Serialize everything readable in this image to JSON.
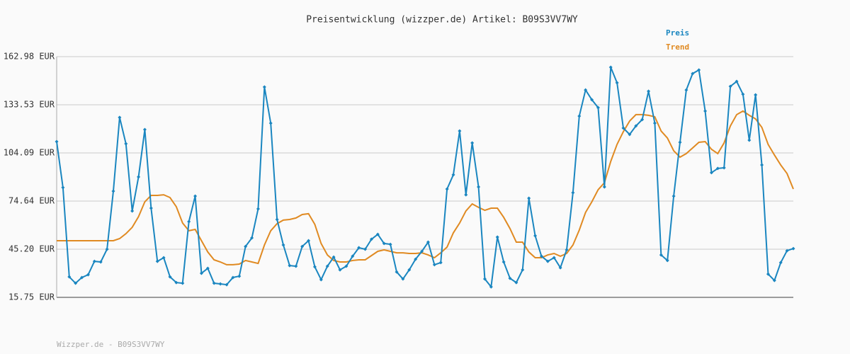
{
  "chart_data": {
    "type": "line",
    "title": "Preisentwicklung (wizzper.de) Artikel: B09S3VV7WY",
    "source": "Wizzper.de - B09S3VV7WY",
    "ylim": [
      15.75,
      162.98
    ],
    "yticks": [
      {
        "value": 15.75,
        "label": "15.75 EUR"
      },
      {
        "value": 45.2,
        "label": "45.20 EUR"
      },
      {
        "value": 74.64,
        "label": "74.64 EUR"
      },
      {
        "value": 104.09,
        "label": "104.09 EUR"
      },
      {
        "value": 133.53,
        "label": "133.53 EUR"
      },
      {
        "value": 162.98,
        "label": "162.98 EUR"
      }
    ],
    "grid": true,
    "series": [
      {
        "name": "Preis",
        "color": "#1a86c0",
        "markers": true,
        "values": [
          111.0,
          82.9,
          28.3,
          24.4,
          27.9,
          29.6,
          37.8,
          37.4,
          45.2,
          80.7,
          125.8,
          109.7,
          68.6,
          89.4,
          118.4,
          70.3,
          37.8,
          40.0,
          28.3,
          24.8,
          24.4,
          62.1,
          77.7,
          30.5,
          33.5,
          24.4,
          24.0,
          23.5,
          27.9,
          28.7,
          46.9,
          52.1,
          69.9,
          144.4,
          122.3,
          63.4,
          47.8,
          35.2,
          34.8,
          46.9,
          50.4,
          34.4,
          26.6,
          34.8,
          40.4,
          32.6,
          34.8,
          40.9,
          46.1,
          45.2,
          51.3,
          54.3,
          48.7,
          48.2,
          31.3,
          27.0,
          32.6,
          39.1,
          43.9,
          49.5,
          35.7,
          37.0,
          82.0,
          90.7,
          117.5,
          78.5,
          110.2,
          83.3,
          27.0,
          22.2,
          52.6,
          37.4,
          27.4,
          24.8,
          32.6,
          76.4,
          53.4,
          40.9,
          37.8,
          40.0,
          33.9,
          44.8,
          79.8,
          126.6,
          142.6,
          136.6,
          131.8,
          83.3,
          156.5,
          147.0,
          119.3,
          115.4,
          120.6,
          124.5,
          141.8,
          122.3,
          41.7,
          38.3,
          77.7,
          110.6,
          142.6,
          152.6,
          154.8,
          129.7,
          92.0,
          94.6,
          95.0,
          144.8,
          147.8,
          140.0,
          111.9,
          139.6,
          96.7,
          30.0,
          26.1,
          37.0,
          44.3,
          45.6
        ]
      },
      {
        "name": "Trend",
        "color": "#e08a22",
        "markers": false,
        "values": [
          50.4,
          50.4,
          50.4,
          50.4,
          50.4,
          50.4,
          50.4,
          50.4,
          50.4,
          50.4,
          51.7,
          54.7,
          58.6,
          65.1,
          74.2,
          78.1,
          78.1,
          78.5,
          76.8,
          71.2,
          61.2,
          56.5,
          57.3,
          50.4,
          43.5,
          38.7,
          37.4,
          35.7,
          35.7,
          36.1,
          38.3,
          37.4,
          36.5,
          47.8,
          56.5,
          60.8,
          63.0,
          63.4,
          64.3,
          66.4,
          66.9,
          60.4,
          48.7,
          41.7,
          38.3,
          37.4,
          37.4,
          38.3,
          38.7,
          38.7,
          41.3,
          43.9,
          44.8,
          43.9,
          43.0,
          43.0,
          42.6,
          42.6,
          43.0,
          41.7,
          40.0,
          43.0,
          46.5,
          55.2,
          61.2,
          68.6,
          72.9,
          70.8,
          69.0,
          70.3,
          70.3,
          64.7,
          57.8,
          49.5,
          49.5,
          43.5,
          40.0,
          40.0,
          41.7,
          42.6,
          40.9,
          42.6,
          47.8,
          56.9,
          67.7,
          74.2,
          81.6,
          85.9,
          98.9,
          109.3,
          117.1,
          123.6,
          127.5,
          127.5,
          127.1,
          126.2,
          117.5,
          113.2,
          105.4,
          101.5,
          103.7,
          107.1,
          110.6,
          111.0,
          106.3,
          103.7,
          110.2,
          120.6,
          127.5,
          129.7,
          127.1,
          124.9,
          119.7,
          109.3,
          102.8,
          96.7,
          91.5,
          82.0
        ]
      }
    ]
  }
}
